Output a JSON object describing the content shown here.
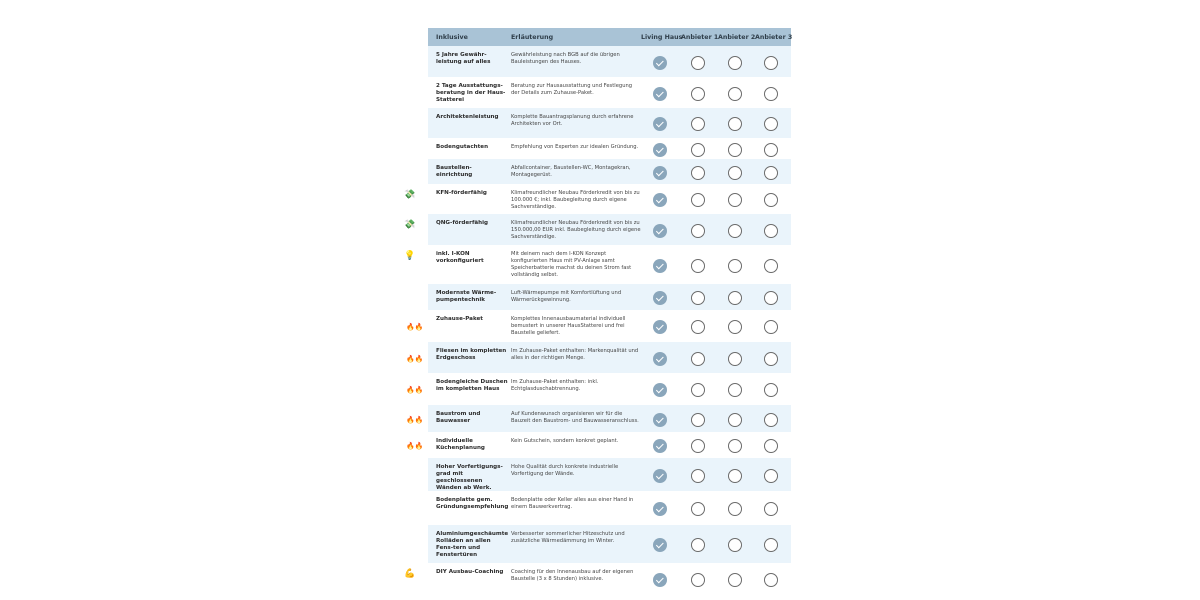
{
  "header": {
    "col_inklusive": "Inklusive",
    "col_erlaeuterung": "Erläuterung",
    "col_living_haus": "Living Haus",
    "col_anbieter1": "Anbieter 1",
    "col_anbieter2": "Anbieter 2",
    "col_anbieter3": "Anbieter 3"
  },
  "colors": {
    "header_bg": "#a9c3d6",
    "row_shade": "#eaf4fb",
    "check_fill": "#8aa6bb"
  },
  "rows": [
    {
      "label": "5 Jahre Gewähr-leistung auf alles",
      "text": "Gewährleistung nach BGB auf die übrigen Bauleistungen des Hauses.",
      "icon": "",
      "checks": [
        true,
        false,
        false,
        false
      ]
    },
    {
      "label": "2 Tage Ausstattungs-beratung in der Haus-Statterei",
      "text": "Beratung zur Hausausstattung und Festlegung der Details zum Zuhause-Paket.",
      "icon": "",
      "checks": [
        true,
        false,
        false,
        false
      ]
    },
    {
      "label": "Architektenleistung",
      "text": "Komplette Bauantragsplanung durch erfahrene Architekten vor Ort.",
      "icon": "",
      "checks": [
        true,
        false,
        false,
        false
      ]
    },
    {
      "label": "Bodengutachten",
      "text": "Empfehlung von Experten zur idealen Gründung.",
      "icon": "",
      "checks": [
        true,
        false,
        false,
        false
      ]
    },
    {
      "label": "Baustellen-einrichtung",
      "text": "Abfallcontainer, Baustellen-WC, Montagekran, Montagegerüst.",
      "icon": "",
      "checks": [
        true,
        false,
        false,
        false
      ]
    },
    {
      "label": "KFN-förderfähig",
      "text": "Klimafreundlicher Neubau Förderkredit von bis zu 100.000 €; inkl. Baubegleitung durch eigene Sachverständige.",
      "icon": "money-icon",
      "checks": [
        true,
        false,
        false,
        false
      ]
    },
    {
      "label": "QNG-förderfähig",
      "text": "Klimafreundlicher Neubau Förderkredit von bis zu 150.000,00 EUR inkl. Baubegleitung durch eigene Sachverständige.",
      "icon": "money-icon",
      "checks": [
        true,
        false,
        false,
        false
      ]
    },
    {
      "label": "inkl. I-KON vorkonfiguriert",
      "text": "Mit deinem nach dem I-KON Konzept konfigurierten Haus mit PV-Anlage samt Speicherbatterie machst du deinen Strom fast vollständig selbst.",
      "icon": "lightbulb-icon",
      "checks": [
        true,
        false,
        false,
        false
      ]
    },
    {
      "label": "Modernste Wärme-pumpentechnik",
      "text": "Luft-Wärmepumpe mit Komfortlüftung und Wärmerückgewinnung.",
      "icon": "",
      "checks": [
        true,
        false,
        false,
        false
      ]
    },
    {
      "label": "Zuhause-Paket",
      "text": "Komplettes Innenausbaumaterial individuell bemustert in unserer HausStatterei und frei Baustelle geliefert.",
      "icon": "fire-icon",
      "checks": [
        true,
        false,
        false,
        false
      ]
    },
    {
      "label": "Fliesen im kompletten Erdgeschoss",
      "text": "Im Zuhause-Paket enthalten: Markenqualität und alles in der richtigen Menge.",
      "icon": "fire-icon",
      "checks": [
        true,
        false,
        false,
        false
      ]
    },
    {
      "label": "Bodengleiche Duschen im kompletten Haus",
      "text": "Im Zuhause-Paket enthalten: inkl. Echtglasduschabtrennung.",
      "icon": "fire-icon",
      "checks": [
        true,
        false,
        false,
        false
      ]
    },
    {
      "label": "Baustrom und Bauwasser",
      "text": "Auf Kundenwunsch organisieren wir für die Bauzeit den Baustrom- und Bauwasseranschluss.",
      "icon": "fire-icon",
      "checks": [
        true,
        false,
        false,
        false
      ]
    },
    {
      "label": "Individuelle Küchenplanung",
      "text": "Kein Gutschein, sondern konkret geplant.",
      "icon": "fire-icon",
      "checks": [
        true,
        false,
        false,
        false
      ]
    },
    {
      "label": "Hoher Vorfertigungs-grad mit geschlossenen Wänden ab Werk.",
      "text": "Hohe Qualität durch konkrete industrielle Vorfertigung der Wände.",
      "icon": "",
      "checks": [
        true,
        false,
        false,
        false
      ]
    },
    {
      "label": "Bodenplatte gem. Gründungsempfehlung",
      "text": "Bodenplatte oder Keller alles aus einer Hand in einem Bauwerkvertrag.",
      "icon": "",
      "checks": [
        true,
        false,
        false,
        false
      ]
    },
    {
      "label": "Aluminiumgeschäumte Rolläden an allen Fens-tern und Fenstertüren",
      "text": "Verbesserter sommerlicher Hitzeschutz und zusätzliche Wärmedämmung im Winter.",
      "icon": "",
      "checks": [
        true,
        false,
        false,
        false
      ]
    },
    {
      "label": "DIY Ausbau-Coaching",
      "text": "Coaching für den Innenausbau auf der eigenen Baustelle (3 x 8 Stunden) inklusive.",
      "icon": "flexed-arm-icon",
      "checks": [
        true,
        false,
        false,
        false
      ]
    }
  ]
}
